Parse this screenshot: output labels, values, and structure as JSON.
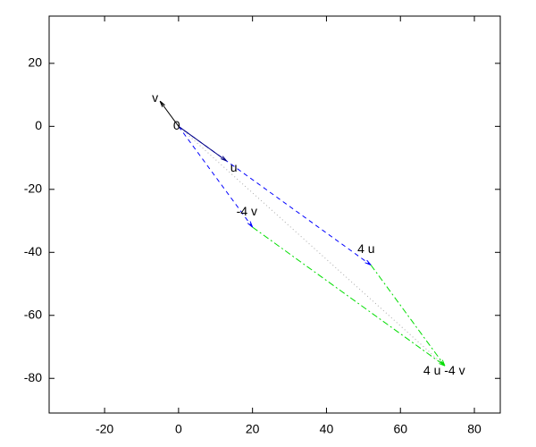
{
  "chart_data": {
    "type": "vectors",
    "xlim": [
      -35,
      87
    ],
    "ylim": [
      -91,
      35
    ],
    "xticks": [
      -20,
      0,
      20,
      40,
      60,
      80
    ],
    "yticks": [
      20,
      0,
      -20,
      -40,
      -60,
      -80
    ],
    "segments": [
      {
        "x": [
          0,
          72
        ],
        "y": [
          0,
          -76
        ],
        "color": "#aaaaaa",
        "style": "dotted",
        "arrow": false
      },
      {
        "x": [
          0,
          52
        ],
        "y": [
          0,
          -44
        ],
        "color": "#0000ff",
        "style": "dashed",
        "arrow": true
      },
      {
        "x": [
          0,
          20
        ],
        "y": [
          0,
          -32
        ],
        "color": "#0000ff",
        "style": "dashed",
        "arrow": true
      },
      {
        "x": [
          20,
          72
        ],
        "y": [
          -32,
          -76
        ],
        "color": "#00dd00",
        "style": "dashdot",
        "arrow": true
      },
      {
        "x": [
          52,
          72
        ],
        "y": [
          -44,
          -76
        ],
        "color": "#00dd00",
        "style": "dashdot",
        "arrow": true
      },
      {
        "x": [
          0,
          13
        ],
        "y": [
          0,
          -11
        ],
        "color": "#000080",
        "style": "solid",
        "arrow": true
      },
      {
        "x": [
          0,
          -5
        ],
        "y": [
          0,
          8
        ],
        "color": "#000000",
        "style": "solid",
        "arrow": true
      }
    ],
    "labels": [
      {
        "text": "v",
        "x": -5,
        "y": 8
      },
      {
        "text": "0",
        "x": 0,
        "y": 0
      },
      {
        "text": "u",
        "x": 13,
        "y": -11
      },
      {
        "text": "4 u",
        "x": 52,
        "y": -44
      },
      {
        "text": "-4 v",
        "x": 20,
        "y": -32
      },
      {
        "text": "4 u -4 v",
        "x": 72,
        "y": -76
      }
    ]
  }
}
